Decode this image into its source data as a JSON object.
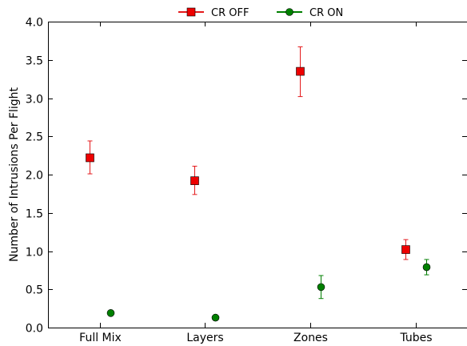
{
  "chart_data": {
    "type": "scatter",
    "categories": [
      "Full Mix",
      "Layers",
      "Zones",
      "Tubes"
    ],
    "ylabel": "Number of Intrusions Per Flight",
    "xlabel": "",
    "ylim": [
      0,
      4.0
    ],
    "yticks": [
      "0.0",
      "0.5",
      "1.0",
      "1.5",
      "2.0",
      "2.5",
      "3.0",
      "3.5",
      "4.0"
    ],
    "grid": false,
    "legend_position": "top-center",
    "series": [
      {
        "name": "CR OFF",
        "color": "#e41a1c",
        "fill": "#ee0000",
        "marker": "square",
        "values": [
          2.22,
          1.92,
          3.35,
          1.02
        ],
        "err_low": [
          2.01,
          1.74,
          3.02,
          0.89
        ],
        "err_high": [
          2.44,
          2.11,
          3.67,
          1.15
        ]
      },
      {
        "name": "CR ON",
        "color": "#007f00",
        "fill": "#008000",
        "marker": "circle",
        "values": [
          0.19,
          0.13,
          0.53,
          0.79
        ],
        "err_low": [
          0.17,
          0.11,
          0.38,
          0.69
        ],
        "err_high": [
          0.21,
          0.15,
          0.68,
          0.89
        ]
      }
    ]
  }
}
